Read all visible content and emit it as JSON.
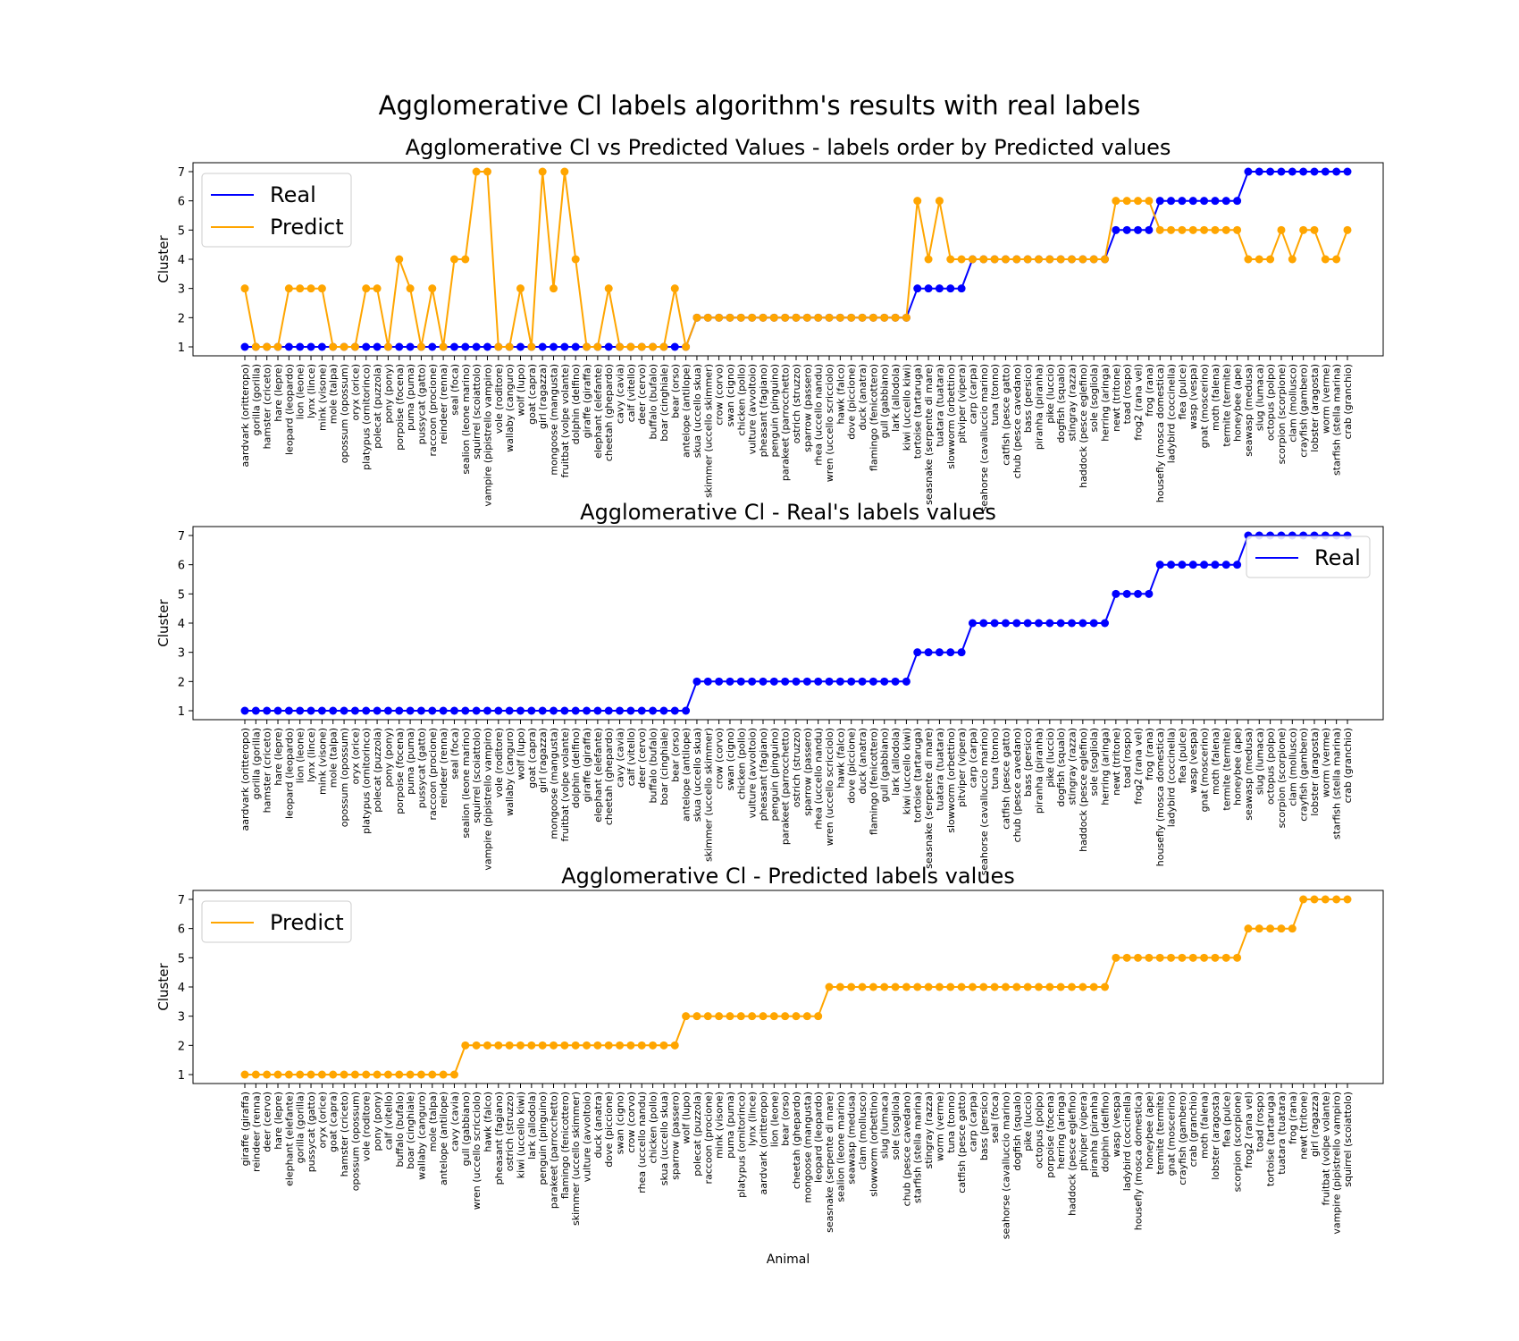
{
  "figure": {
    "suptitle": "Agglomerative Cl labels algorithm's results with real labels"
  },
  "colors": {
    "real": "#0000ff",
    "predict": "#ffa500"
  },
  "chart_data": [
    {
      "type": "line",
      "title": "Agglomerative Cl vs Predicted Values - labels order by Predicted values",
      "xlabel": "",
      "ylabel": "Cluster",
      "ylim": [
        1,
        7
      ],
      "yticks": [
        1,
        2,
        3,
        4,
        5,
        6,
        7
      ],
      "legend": "top-left",
      "categories": [
        "aardvark (oritteropo)",
        "gorilla (gorilla)",
        "hamster (criceto)",
        "hare (lepre)",
        "leopard (leopardo)",
        "lion (leone)",
        "lynx (lince)",
        "mink (visone)",
        "mole (talpa)",
        "opossum (opossum)",
        "oryx (orice)",
        "platypus (ornitorinco)",
        "polecat (puzzola)",
        "pony (pony)",
        "porpoise (focena)",
        "puma (puma)",
        "pussycat (gatto)",
        "raccoon (procione)",
        "reindeer (renna)",
        "seal (foca)",
        "sealion (leone marino)",
        "squirrel (scoiattolo)",
        "vampire (pipistrello vampiro)",
        "vole (roditore)",
        "wallaby (canguro)",
        "wolf (lupo)",
        "goat (capra)",
        "girl (ragazza)",
        "mongoose (mangusta)",
        "fruitbat (volpe volante)",
        "dolphin (delfino)",
        "giraffe (giraffa)",
        "elephant (elefante)",
        "cheetah (ghepardo)",
        "cavy (cavia)",
        "calf (vitello)",
        "deer (cervo)",
        "buffalo (bufalo)",
        "boar (cinghiale)",
        "bear (orso)",
        "antelope (antilope)",
        "skua (uccello skua)",
        "skimmer (uccello skimmer)",
        "crow (corvo)",
        "swan (cigno)",
        "chicken (pollo)",
        "vulture (avvoltoio)",
        "pheasant (fagiano)",
        "penguin (pinguino)",
        "parakeet (parrocchetto)",
        "ostrich (struzzo)",
        "sparrow (passero)",
        "rhea (uccello nandu)",
        "wren (uccello scricciolo)",
        "hawk (falco)",
        "dove (piccione)",
        "duck (anatra)",
        "flamingo (fenicottero)",
        "gull (gabbiano)",
        "lark (allodola)",
        "kiwi (uccello kiwi)",
        "tortoise (tartaruga)",
        "seasnake (serpente di mare)",
        "tuatara (tuatara)",
        "slowworm (orbettino)",
        "pitviper (vipera)",
        "carp (carpa)",
        "seahorse (cavalluccio marino)",
        "tuna (tonno)",
        "catfish (pesce gatto)",
        "chub (pesce cavedano)",
        "bass (persico)",
        "piranha (piranha)",
        "pike (luccio)",
        "dogfish (squalo)",
        "stingray (razza)",
        "haddock (pesce eglefino)",
        "sole (sogliola)",
        "herring (aringa)",
        "newt (tritone)",
        "toad (rospo)",
        "frog2 (rana vel)",
        "frog (rana)",
        "housefly (mosca domestica)",
        "ladybird (coccinella)",
        "flea (pulce)",
        "wasp (vespa)",
        "gnat (moscerino)",
        "moth (falena)",
        "termite (termite)",
        "honeybee (ape)",
        "seawasp (medusa)",
        "slug (lumaca)",
        "octopus (polpo)",
        "scorpion (scorpione)",
        "clam (mollusco)",
        "crayfish (gambero)",
        "lobster (aragosta)",
        "worm (verme)",
        "starfish (stella marina)",
        "crab (granchio)"
      ],
      "series": [
        {
          "name": "Real",
          "values": [
            1,
            1,
            1,
            1,
            1,
            1,
            1,
            1,
            1,
            1,
            1,
            1,
            1,
            1,
            1,
            1,
            1,
            1,
            1,
            1,
            1,
            1,
            1,
            1,
            1,
            1,
            1,
            1,
            1,
            1,
            1,
            1,
            1,
            1,
            1,
            1,
            1,
            1,
            1,
            1,
            1,
            2,
            2,
            2,
            2,
            2,
            2,
            2,
            2,
            2,
            2,
            2,
            2,
            2,
            2,
            2,
            2,
            2,
            2,
            2,
            2,
            3,
            3,
            3,
            3,
            3,
            4,
            4,
            4,
            4,
            4,
            4,
            4,
            4,
            4,
            4,
            4,
            4,
            4,
            5,
            5,
            5,
            5,
            6,
            6,
            6,
            6,
            6,
            6,
            6,
            6,
            7,
            7,
            7,
            7,
            7,
            7,
            7,
            7,
            7,
            7
          ]
        },
        {
          "name": "Predict",
          "values": [
            3,
            1,
            1,
            1,
            3,
            3,
            3,
            3,
            1,
            1,
            1,
            3,
            3,
            1,
            4,
            3,
            1,
            3,
            1,
            4,
            4,
            7,
            7,
            1,
            1,
            3,
            1,
            7,
            3,
            7,
            4,
            1,
            1,
            3,
            1,
            1,
            1,
            1,
            1,
            3,
            1,
            2,
            2,
            2,
            2,
            2,
            2,
            2,
            2,
            2,
            2,
            2,
            2,
            2,
            2,
            2,
            2,
            2,
            2,
            2,
            2,
            6,
            4,
            6,
            4,
            4,
            4,
            4,
            4,
            4,
            4,
            4,
            4,
            4,
            4,
            4,
            4,
            4,
            4,
            6,
            6,
            6,
            6,
            5,
            5,
            5,
            5,
            5,
            5,
            5,
            5,
            4,
            4,
            4,
            5,
            4,
            5,
            5,
            4,
            4,
            5
          ]
        }
      ]
    },
    {
      "type": "line",
      "title": "Agglomerative Cl - Real's labels values",
      "xlabel": "",
      "ylabel": "Cluster",
      "ylim": [
        1,
        7
      ],
      "yticks": [
        1,
        2,
        3,
        4,
        5,
        6,
        7
      ],
      "legend": "top-right",
      "categories": [
        "aardvark (oritteropo)",
        "gorilla (gorilla)",
        "hamster (criceto)",
        "hare (lepre)",
        "leopard (leopardo)",
        "lion (leone)",
        "lynx (lince)",
        "mink (visone)",
        "mole (talpa)",
        "opossum (opossum)",
        "oryx (orice)",
        "platypus (ornitorinco)",
        "polecat (puzzola)",
        "pony (pony)",
        "porpoise (focena)",
        "puma (puma)",
        "pussycat (gatto)",
        "raccoon (procione)",
        "reindeer (renna)",
        "seal (foca)",
        "sealion (leone marino)",
        "squirrel (scoiattolo)",
        "vampire (pipistrello vampiro)",
        "vole (roditore)",
        "wallaby (canguro)",
        "wolf (lupo)",
        "goat (capra)",
        "girl (ragazza)",
        "mongoose (mangusta)",
        "fruitbat (volpe volante)",
        "dolphin (delfino)",
        "giraffe (giraffa)",
        "elephant (elefante)",
        "cheetah (ghepardo)",
        "cavy (cavia)",
        "calf (vitello)",
        "deer (cervo)",
        "buffalo (bufalo)",
        "boar (cinghiale)",
        "bear (orso)",
        "antelope (antilope)",
        "skua (uccello skua)",
        "skimmer (uccello skimmer)",
        "crow (corvo)",
        "swan (cigno)",
        "chicken (pollo)",
        "vulture (avvoltoio)",
        "pheasant (fagiano)",
        "penguin (pinguino)",
        "parakeet (parrocchetto)",
        "ostrich (struzzo)",
        "sparrow (passero)",
        "rhea (uccello nandu)",
        "wren (uccello scricciolo)",
        "hawk (falco)",
        "dove (piccione)",
        "duck (anatra)",
        "flamingo (fenicottero)",
        "gull (gabbiano)",
        "lark (allodola)",
        "kiwi (uccello kiwi)",
        "tortoise (tartaruga)",
        "seasnake (serpente di mare)",
        "tuatara (tuatara)",
        "slowworm (orbettino)",
        "pitviper (vipera)",
        "carp (carpa)",
        "seahorse (cavalluccio marino)",
        "tuna (tonno)",
        "catfish (pesce gatto)",
        "chub (pesce cavedano)",
        "bass (persico)",
        "piranha (piranha)",
        "pike (luccio)",
        "dogfish (squalo)",
        "stingray (razza)",
        "haddock (pesce eglefino)",
        "sole (sogliola)",
        "herring (aringa)",
        "newt (tritone)",
        "toad (rospo)",
        "frog2 (rana vel)",
        "frog (rana)",
        "housefly (mosca domestica)",
        "ladybird (coccinella)",
        "flea (pulce)",
        "wasp (vespa)",
        "gnat (moscerino)",
        "moth (falena)",
        "termite (termite)",
        "honeybee (ape)",
        "seawasp (medusa)",
        "slug (lumaca)",
        "octopus (polpo)",
        "scorpion (scorpione)",
        "clam (mollusco)",
        "crayfish (gambero)",
        "lobster (aragosta)",
        "worm (verme)",
        "starfish (stella marina)",
        "crab (granchio)"
      ],
      "series": [
        {
          "name": "Real",
          "values": [
            1,
            1,
            1,
            1,
            1,
            1,
            1,
            1,
            1,
            1,
            1,
            1,
            1,
            1,
            1,
            1,
            1,
            1,
            1,
            1,
            1,
            1,
            1,
            1,
            1,
            1,
            1,
            1,
            1,
            1,
            1,
            1,
            1,
            1,
            1,
            1,
            1,
            1,
            1,
            1,
            1,
            2,
            2,
            2,
            2,
            2,
            2,
            2,
            2,
            2,
            2,
            2,
            2,
            2,
            2,
            2,
            2,
            2,
            2,
            2,
            2,
            3,
            3,
            3,
            3,
            3,
            4,
            4,
            4,
            4,
            4,
            4,
            4,
            4,
            4,
            4,
            4,
            4,
            4,
            5,
            5,
            5,
            5,
            6,
            6,
            6,
            6,
            6,
            6,
            6,
            6,
            7,
            7,
            7,
            7,
            7,
            7,
            7,
            7,
            7,
            7
          ]
        }
      ]
    },
    {
      "type": "line",
      "title": "Agglomerative Cl - Predicted labels values",
      "xlabel": "Animal",
      "ylabel": "Cluster",
      "ylim": [
        1,
        7
      ],
      "yticks": [
        1,
        2,
        3,
        4,
        5,
        6,
        7
      ],
      "legend": "top-left",
      "categories": [
        "giraffe (giraffa)",
        "reindeer (renna)",
        "deer (cervo)",
        "hare (lepre)",
        "elephant (elefante)",
        "gorilla (gorilla)",
        "pussycat (gatto)",
        "oryx (orice)",
        "goat (capra)",
        "hamster (criceto)",
        "opossum (opossum)",
        "vole (roditore)",
        "pony (pony)",
        "calf (vitello)",
        "buffalo (bufalo)",
        "boar (cinghiale)",
        "wallaby (canguro)",
        "mole (talpa)",
        "antelope (antilope)",
        "cavy (cavia)",
        "gull (gabbiano)",
        "wren (uccello scricciolo)",
        "hawk (falco)",
        "pheasant (fagiano)",
        "ostrich (struzzo)",
        "kiwi (uccello kiwi)",
        "lark (allodola)",
        "penguin (pinguino)",
        "parakeet (parrocchetto)",
        "flamingo (fenicottero)",
        "skimmer (uccello skimmer)",
        "vulture (avvoltoio)",
        "duck (anatra)",
        "dove (piccione)",
        "swan (cigno)",
        "crow (corvo)",
        "rhea (uccello nandu)",
        "chicken (pollo)",
        "skua (uccello skua)",
        "sparrow (passero)",
        "wolf (lupo)",
        "polecat (puzzola)",
        "raccoon (procione)",
        "mink (visone)",
        "puma (puma)",
        "platypus (ornitorinco)",
        "lynx (lince)",
        "aardvark (oritteropo)",
        "lion (leone)",
        "bear (orso)",
        "cheetah (ghepardo)",
        "mongoose (mangusta)",
        "leopard (leopardo)",
        "seasnake (serpente di mare)",
        "sealion (leone marino)",
        "seawasp (medusa)",
        "clam (mollusco)",
        "slowworm (orbettino)",
        "slug (lumaca)",
        "sole (sogliola)",
        "chub (pesce cavedano)",
        "starfish (stella marina)",
        "stingray (razza)",
        "worm (verme)",
        "tuna (tonno)",
        "catfish (pesce gatto)",
        "carp (carpa)",
        "bass (persico)",
        "seal (foca)",
        "seahorse (cavalluccio marino)",
        "dogfish (squalo)",
        "pike (luccio)",
        "octopus (polpo)",
        "porpoise (focena)",
        "herring (aringa)",
        "haddock (pesce eglefino)",
        "pitviper (vipera)",
        "piranha (piranha)",
        "dolphin (delfino)",
        "wasp (vespa)",
        "ladybird (coccinella)",
        "housefly (mosca domestica)",
        "honeybee (ape)",
        "termite (termite)",
        "gnat (moscerino)",
        "crayfish (gambero)",
        "crab (granchio)",
        "moth (falena)",
        "lobster (aragosta)",
        "flea (pulce)",
        "scorpion (scorpione)",
        "frog2 (rana vel)",
        "toad (rospo)",
        "tortoise (tartaruga)",
        "tuatara (tuatara)",
        "frog (rana)",
        "newt (tritone)",
        "girl (ragazza)",
        "fruitbat (volpe volante)",
        "vampire (pipistrello vampiro)",
        "squirrel (scoiattolo)"
      ],
      "series": [
        {
          "name": "Predict",
          "values": [
            1,
            1,
            1,
            1,
            1,
            1,
            1,
            1,
            1,
            1,
            1,
            1,
            1,
            1,
            1,
            1,
            1,
            1,
            1,
            1,
            2,
            2,
            2,
            2,
            2,
            2,
            2,
            2,
            2,
            2,
            2,
            2,
            2,
            2,
            2,
            2,
            2,
            2,
            2,
            2,
            3,
            3,
            3,
            3,
            3,
            3,
            3,
            3,
            3,
            3,
            3,
            3,
            3,
            4,
            4,
            4,
            4,
            4,
            4,
            4,
            4,
            4,
            4,
            4,
            4,
            4,
            4,
            4,
            4,
            4,
            4,
            4,
            4,
            4,
            4,
            4,
            4,
            4,
            4,
            5,
            5,
            5,
            5,
            5,
            5,
            5,
            5,
            5,
            5,
            5,
            5,
            6,
            6,
            6,
            6,
            6,
            7,
            7,
            7,
            7,
            7
          ]
        }
      ]
    }
  ]
}
